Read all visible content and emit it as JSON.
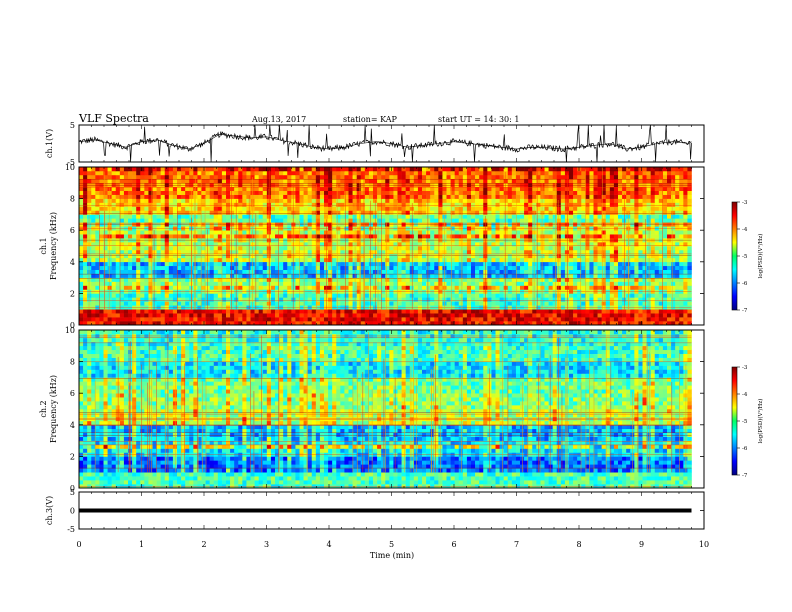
{
  "header": {
    "title": "VLF Spectra",
    "date": "Aug.13, 2017",
    "station": "station= KAP",
    "start": "start  UT  =   14: 30: 1"
  },
  "chart_data": [
    {
      "type": "line",
      "panel": "ch1-waveform",
      "ylabel": "ch.1(V)",
      "ylim": [
        -5,
        5
      ],
      "yticks": [
        "5",
        "-5"
      ],
      "xlim": [
        0,
        10
      ],
      "x": [
        0,
        0.25,
        0.5,
        0.75,
        1.0,
        1.25,
        1.5,
        1.75,
        2.0,
        2.25,
        2.5,
        2.75,
        3.0,
        3.25,
        3.5,
        3.75,
        4.0,
        4.25,
        4.5,
        4.75,
        5.0,
        5.25,
        5.5,
        5.75,
        6.0,
        6.25,
        6.5,
        6.75,
        7.0,
        7.25,
        7.5,
        7.75,
        8.0,
        8.25,
        8.5,
        8.75,
        9.0,
        9.25,
        9.5,
        9.75,
        9.8
      ],
      "values": [
        0.5,
        1.0,
        0.0,
        -1.0,
        0.5,
        1.0,
        -0.5,
        -1.5,
        0.0,
        2.5,
        2.0,
        1.5,
        1.8,
        0.8,
        0.0,
        -1.0,
        -1.5,
        -1.0,
        0.0,
        0.5,
        0.0,
        -1.0,
        -0.5,
        0.0,
        0.5,
        0.0,
        -0.5,
        -1.0,
        -1.5,
        -1.0,
        -1.2,
        -1.5,
        -1.0,
        -0.5,
        0.0,
        -1.5,
        -1.0,
        0.0,
        0.5,
        0.0,
        0.5
      ]
    },
    {
      "type": "heatmap",
      "panel": "ch1-spectrogram",
      "ylabel": "ch.1\nFrequency (kHz)",
      "ylim": [
        0,
        10
      ],
      "yticks": [
        "0",
        "2",
        "4",
        "6",
        "8",
        "10"
      ],
      "xlim": [
        0,
        10
      ],
      "colorbar": {
        "label": "log(PSD)(V²/Hz)",
        "range": [
          -7,
          -3
        ],
        "ticks": [
          "-3",
          "-4",
          "-5",
          "-6",
          "-7"
        ]
      },
      "freq_kHz": [
        0.5,
        1.5,
        2.5,
        3.5,
        4.5,
        5.5,
        6.5,
        7.5,
        8.5,
        9.5
      ],
      "log_psd": [
        -3.5,
        -5.3,
        -5.0,
        -5.8,
        -4.8,
        -4.8,
        -5.2,
        -4.4,
        -4.0,
        -4.0
      ]
    },
    {
      "type": "heatmap",
      "panel": "ch2-spectrogram",
      "ylabel": "ch.2\nFrequency (kHz)",
      "ylim": [
        0,
        10
      ],
      "yticks": [
        "0",
        "2",
        "4",
        "6",
        "8",
        "10"
      ],
      "xlim": [
        0,
        10
      ],
      "colorbar": {
        "label": "log(PSD)(V²/Hz)",
        "range": [
          -7,
          -3
        ],
        "ticks": [
          "-3",
          "-4",
          "-5",
          "-6",
          "-7"
        ]
      },
      "freq_kHz": [
        0.5,
        1.5,
        2.5,
        3.5,
        4.5,
        5.5,
        6.5,
        7.5,
        8.5,
        9.5
      ],
      "log_psd": [
        -5.2,
        -6.1,
        -5.6,
        -5.8,
        -4.8,
        -5.0,
        -5.1,
        -5.6,
        -5.3,
        -5.4
      ]
    },
    {
      "type": "line",
      "panel": "ch3-waveform",
      "ylabel": "ch.3(V)",
      "ylim": [
        -5,
        5
      ],
      "yticks": [
        "5",
        "0",
        "-5"
      ],
      "xlim": [
        0,
        10
      ],
      "xlabel": "Time (min)",
      "xticks": [
        "0",
        "1",
        "2",
        "3",
        "4",
        "5",
        "6",
        "7",
        "8",
        "9",
        "10"
      ],
      "x": [
        0,
        9.8
      ],
      "values": [
        0,
        0
      ]
    }
  ]
}
